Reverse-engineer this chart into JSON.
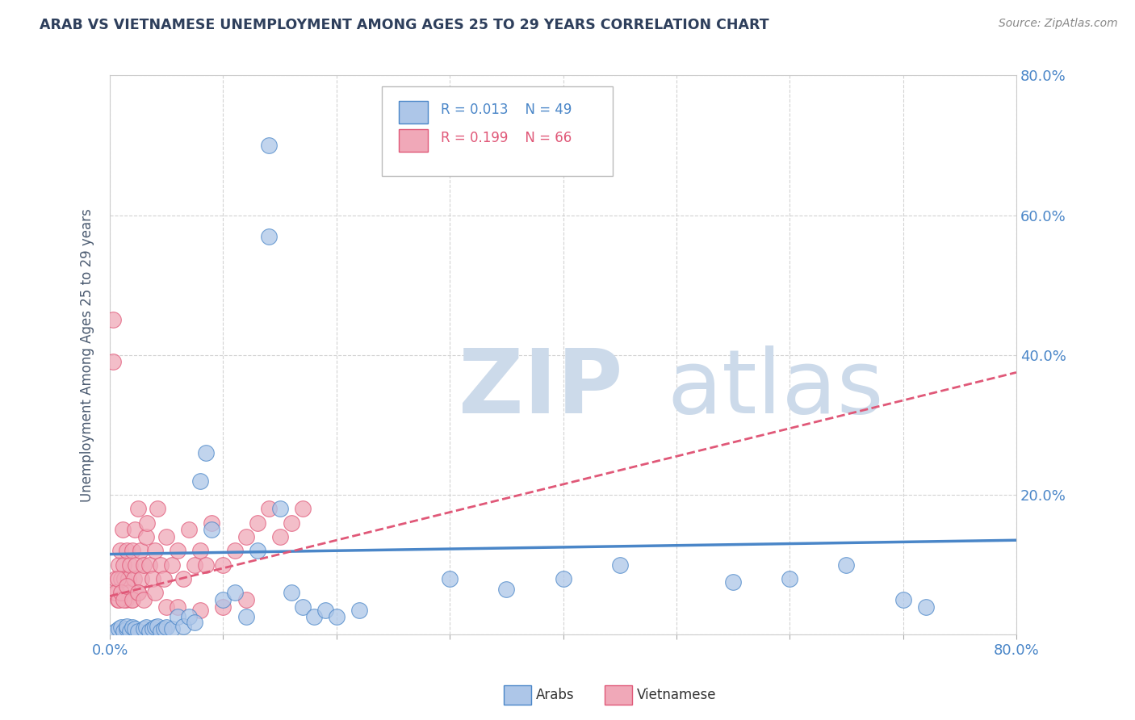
{
  "title": "ARAB VS VIETNAMESE UNEMPLOYMENT AMONG AGES 25 TO 29 YEARS CORRELATION CHART",
  "source_text": "Source: ZipAtlas.com",
  "ylabel": "Unemployment Among Ages 25 to 29 years",
  "xlim": [
    0.0,
    0.8
  ],
  "ylim": [
    0.0,
    0.8
  ],
  "arab_R": "0.013",
  "arab_N": "49",
  "viet_R": "0.199",
  "viet_N": "66",
  "background_color": "#ffffff",
  "grid_color": "#c8c8c8",
  "arab_color": "#adc6e8",
  "viet_color": "#f0a8b8",
  "arab_line_color": "#4a86c8",
  "viet_line_color": "#e05878",
  "watermark_zip": "ZIP",
  "watermark_atlas": "atlas",
  "watermark_color": "#ccdaea",
  "title_color": "#2e3f5c",
  "axis_label_color": "#4a5a70",
  "tick_label_color": "#4a86c8",
  "legend_arab_label": "Arabs",
  "legend_viet_label": "Vietnamese",
  "arab_x": [
    0.005,
    0.008,
    0.01,
    0.012,
    0.015,
    0.015,
    0.018,
    0.02,
    0.022,
    0.025,
    0.03,
    0.032,
    0.035,
    0.038,
    0.04,
    0.042,
    0.045,
    0.048,
    0.05,
    0.055,
    0.06,
    0.065,
    0.07,
    0.075,
    0.08,
    0.085,
    0.09,
    0.1,
    0.11,
    0.12,
    0.13,
    0.14,
    0.14,
    0.15,
    0.16,
    0.17,
    0.18,
    0.19,
    0.2,
    0.22,
    0.3,
    0.35,
    0.4,
    0.45,
    0.55,
    0.6,
    0.65,
    0.7,
    0.72
  ],
  "arab_y": [
    0.005,
    0.008,
    0.01,
    0.005,
    0.008,
    0.012,
    0.005,
    0.01,
    0.008,
    0.005,
    0.008,
    0.01,
    0.005,
    0.008,
    0.01,
    0.012,
    0.005,
    0.008,
    0.01,
    0.008,
    0.025,
    0.012,
    0.025,
    0.018,
    0.22,
    0.26,
    0.15,
    0.05,
    0.06,
    0.025,
    0.12,
    0.7,
    0.57,
    0.18,
    0.06,
    0.04,
    0.025,
    0.035,
    0.025,
    0.035,
    0.08,
    0.065,
    0.08,
    0.1,
    0.075,
    0.08,
    0.1,
    0.05,
    0.04
  ],
  "viet_x": [
    0.003,
    0.005,
    0.006,
    0.007,
    0.008,
    0.009,
    0.01,
    0.011,
    0.012,
    0.013,
    0.014,
    0.015,
    0.016,
    0.017,
    0.018,
    0.019,
    0.02,
    0.021,
    0.022,
    0.023,
    0.025,
    0.025,
    0.027,
    0.028,
    0.03,
    0.032,
    0.033,
    0.035,
    0.038,
    0.04,
    0.042,
    0.045,
    0.048,
    0.05,
    0.055,
    0.06,
    0.065,
    0.07,
    0.075,
    0.08,
    0.085,
    0.09,
    0.1,
    0.11,
    0.12,
    0.13,
    0.14,
    0.15,
    0.16,
    0.17,
    0.003,
    0.005,
    0.007,
    0.008,
    0.01,
    0.012,
    0.015,
    0.02,
    0.025,
    0.03,
    0.04,
    0.05,
    0.06,
    0.08,
    0.1,
    0.12
  ],
  "viet_y": [
    0.45,
    0.08,
    0.06,
    0.05,
    0.1,
    0.12,
    0.08,
    0.15,
    0.1,
    0.08,
    0.05,
    0.12,
    0.08,
    0.06,
    0.1,
    0.05,
    0.12,
    0.08,
    0.15,
    0.1,
    0.18,
    0.06,
    0.12,
    0.08,
    0.1,
    0.14,
    0.16,
    0.1,
    0.08,
    0.12,
    0.18,
    0.1,
    0.08,
    0.14,
    0.1,
    0.12,
    0.08,
    0.15,
    0.1,
    0.12,
    0.1,
    0.16,
    0.1,
    0.12,
    0.14,
    0.16,
    0.18,
    0.14,
    0.16,
    0.18,
    0.39,
    0.06,
    0.08,
    0.05,
    0.06,
    0.05,
    0.07,
    0.05,
    0.06,
    0.05,
    0.06,
    0.04,
    0.04,
    0.035,
    0.04,
    0.05
  ],
  "arab_trend_x": [
    0.0,
    0.8
  ],
  "arab_trend_y": [
    0.115,
    0.135
  ],
  "viet_trend_x": [
    0.0,
    0.8
  ],
  "viet_trend_y": [
    0.055,
    0.375
  ]
}
